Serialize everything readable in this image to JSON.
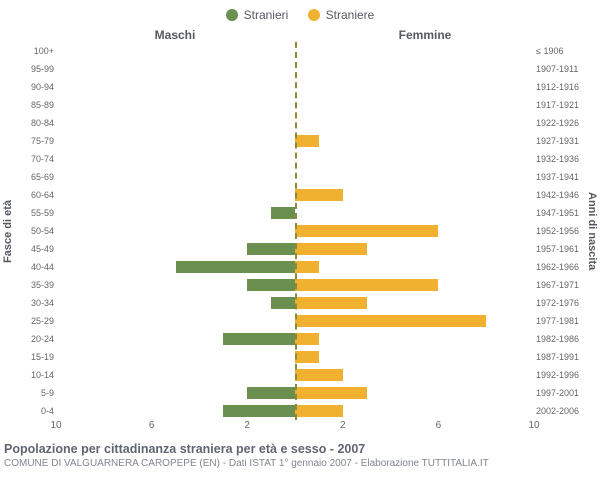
{
  "legend": {
    "male": {
      "label": "Stranieri",
      "color": "#6b8f4f"
    },
    "female": {
      "label": "Straniere",
      "color": "#f0b030"
    }
  },
  "headers": {
    "male": "Maschi",
    "female": "Femmine"
  },
  "axis_labels": {
    "left": "Fasce di età",
    "right": "Anni di nascita"
  },
  "chart": {
    "type": "population-pyramid",
    "xmax": 10,
    "xticks": [
      10,
      6,
      2,
      2,
      6,
      10
    ],
    "background_color": "#ffffff",
    "bar_band_height_pct": 70,
    "rows": [
      {
        "age": "100+",
        "m": 0,
        "f": 0,
        "years": "≤ 1906"
      },
      {
        "age": "95-99",
        "m": 0,
        "f": 0,
        "years": "1907-1911"
      },
      {
        "age": "90-94",
        "m": 0,
        "f": 0,
        "years": "1912-1916"
      },
      {
        "age": "85-89",
        "m": 0,
        "f": 0,
        "years": "1917-1921"
      },
      {
        "age": "80-84",
        "m": 0,
        "f": 0,
        "years": "1922-1926"
      },
      {
        "age": "75-79",
        "m": 0,
        "f": 1,
        "years": "1927-1931"
      },
      {
        "age": "70-74",
        "m": 0,
        "f": 0,
        "years": "1932-1936"
      },
      {
        "age": "65-69",
        "m": 0,
        "f": 0,
        "years": "1937-1941"
      },
      {
        "age": "60-64",
        "m": 0,
        "f": 2,
        "years": "1942-1946"
      },
      {
        "age": "55-59",
        "m": 1,
        "f": 0,
        "years": "1947-1951"
      },
      {
        "age": "50-54",
        "m": 0,
        "f": 6,
        "years": "1952-1956"
      },
      {
        "age": "45-49",
        "m": 2,
        "f": 3,
        "years": "1957-1961"
      },
      {
        "age": "40-44",
        "m": 5,
        "f": 1,
        "years": "1962-1966"
      },
      {
        "age": "35-39",
        "m": 2,
        "f": 6,
        "years": "1967-1971"
      },
      {
        "age": "30-34",
        "m": 1,
        "f": 3,
        "years": "1972-1976"
      },
      {
        "age": "25-29",
        "m": 0,
        "f": 8,
        "years": "1977-1981"
      },
      {
        "age": "20-24",
        "m": 3,
        "f": 1,
        "years": "1982-1986"
      },
      {
        "age": "15-19",
        "m": 0,
        "f": 1,
        "years": "1987-1991"
      },
      {
        "age": "10-14",
        "m": 0,
        "f": 2,
        "years": "1992-1996"
      },
      {
        "age": "5-9",
        "m": 2,
        "f": 3,
        "years": "1997-2001"
      },
      {
        "age": "0-4",
        "m": 3,
        "f": 2,
        "years": "2002-2006"
      }
    ]
  },
  "title": "Popolazione per cittadinanza straniera per età e sesso - 2007",
  "subtitle": "COMUNE DI VALGUARNERA CAROPEPE (EN) - Dati ISTAT 1° gennaio 2007 - Elaborazione TUTTITALIA.IT"
}
